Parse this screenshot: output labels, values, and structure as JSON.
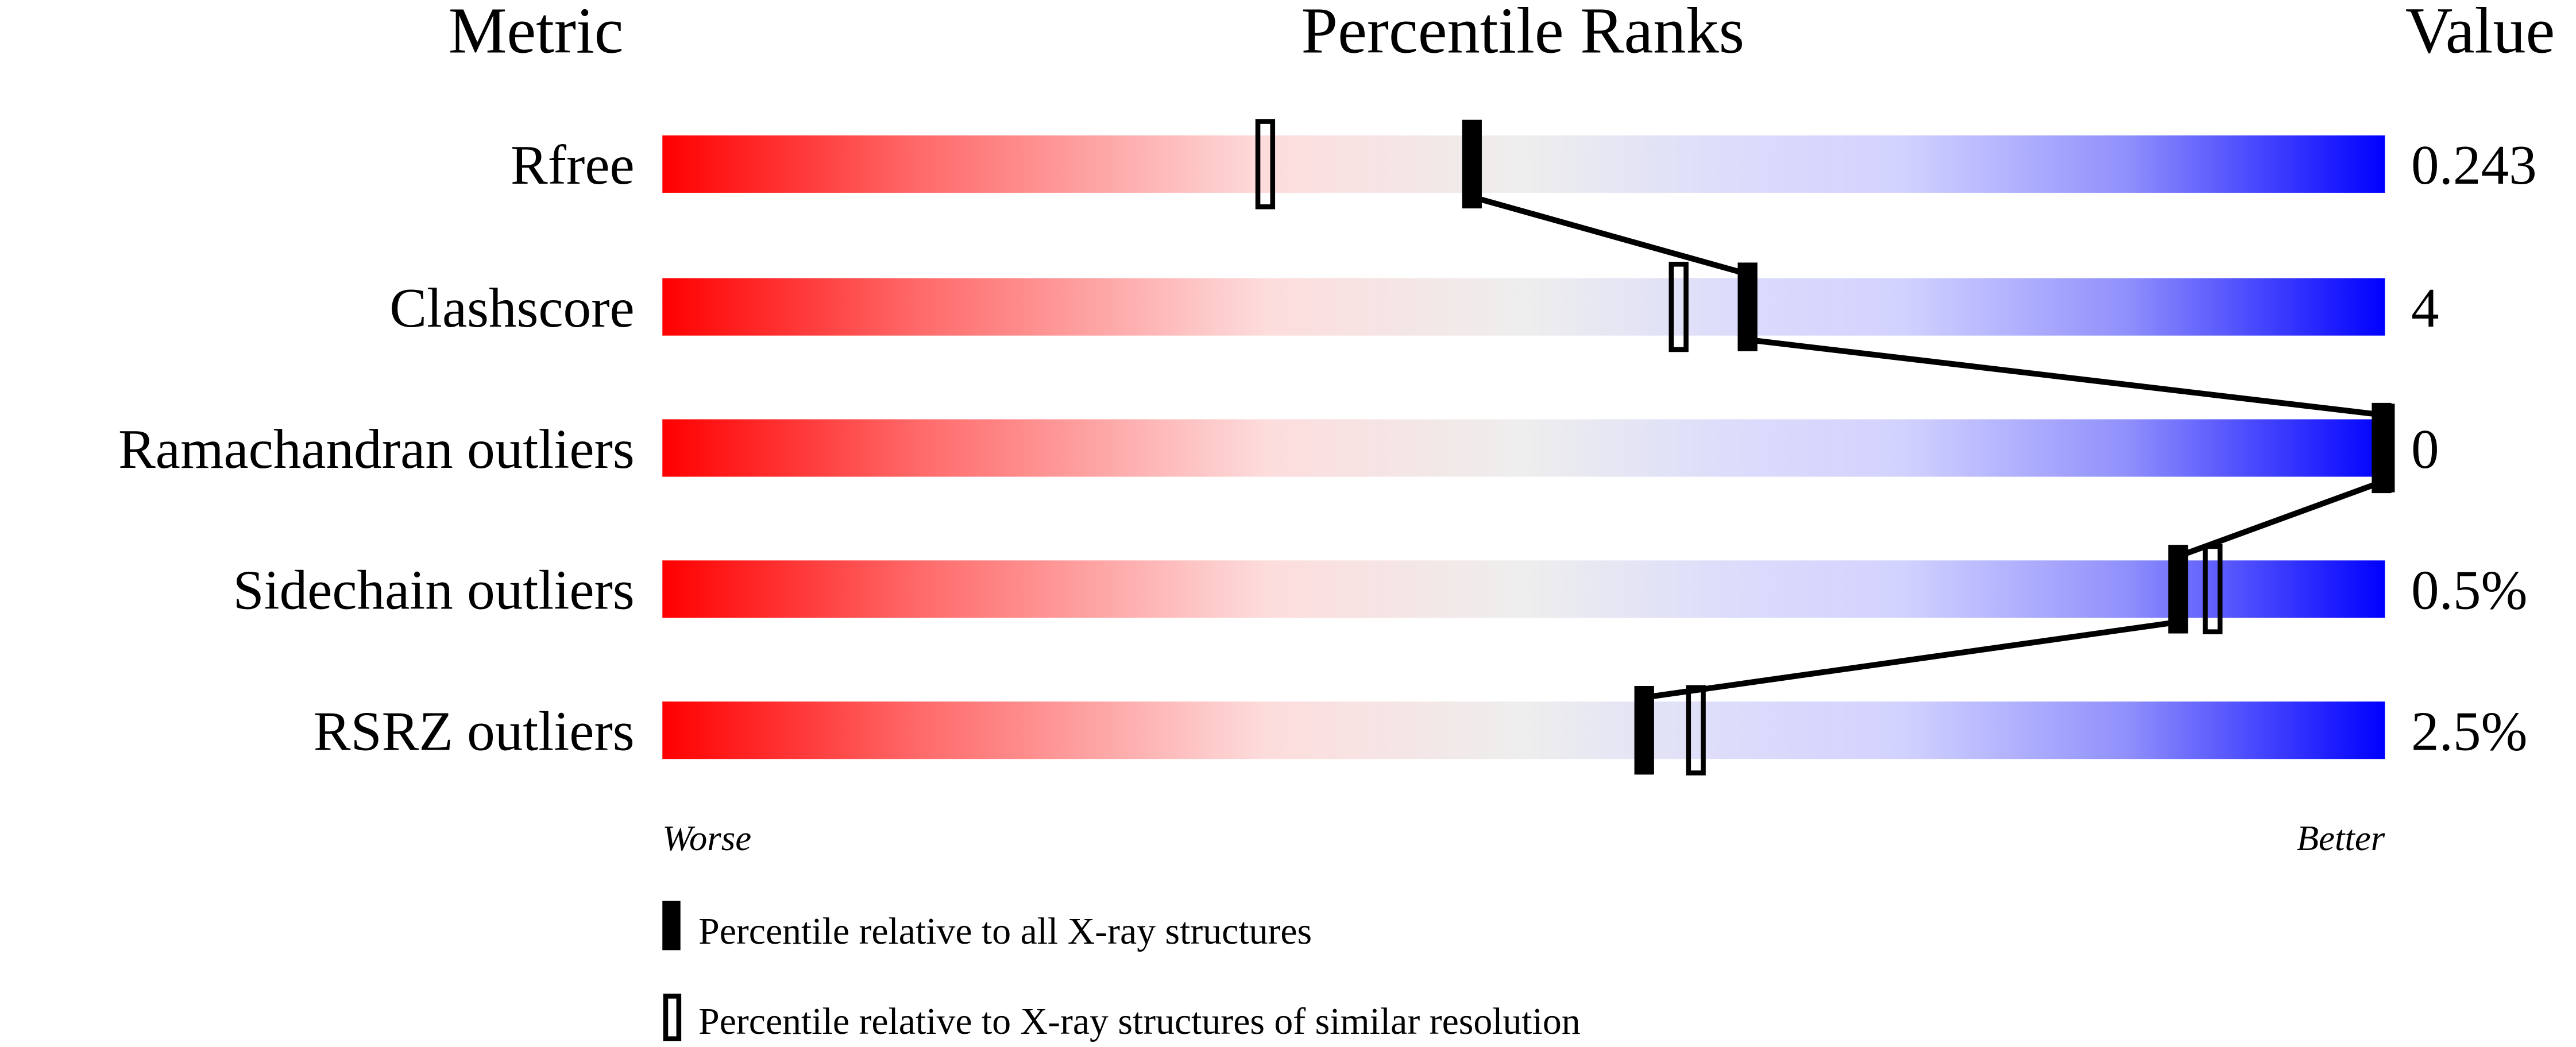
{
  "chart_data": {
    "type": "percentile-slider",
    "headers": {
      "metric": "Metric",
      "ranks": "Percentile Ranks",
      "value": "Value"
    },
    "xlim": [
      0,
      100
    ],
    "axis_labels": {
      "left": "Worse",
      "right": "Better"
    },
    "gradient_colors": {
      "worse": "#ff0000",
      "middle": "#eeeeee",
      "better": "#0000ff"
    },
    "metrics": [
      {
        "name": "Rfree",
        "value": "0.243",
        "percentile_all": 47,
        "percentile_similar": 35
      },
      {
        "name": "Clashscore",
        "value": "4",
        "percentile_all": 63,
        "percentile_similar": 59
      },
      {
        "name": "Ramachandran outliers",
        "value": "0",
        "percentile_all": 100,
        "percentile_similar": 100
      },
      {
        "name": "Sidechain outliers",
        "value": "0.5%",
        "percentile_all": 88,
        "percentile_similar": 90
      },
      {
        "name": "RSRZ outliers",
        "value": "2.5%",
        "percentile_all": 57,
        "percentile_similar": 60
      }
    ],
    "legend": [
      {
        "marker": "filled",
        "label": "Percentile relative to all X-ray structures"
      },
      {
        "marker": "open",
        "label": "Percentile relative to X-ray structures of similar resolution"
      }
    ]
  }
}
